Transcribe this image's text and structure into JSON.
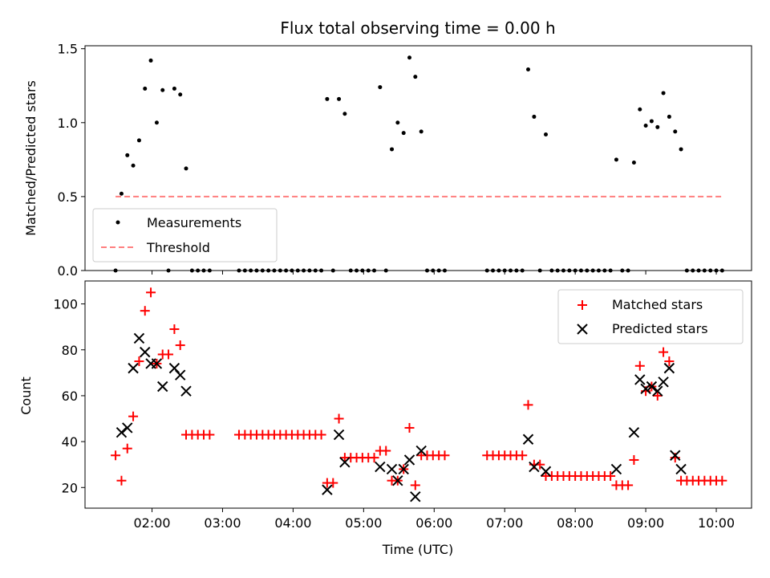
{
  "chart_data": [
    {
      "type": "scatter",
      "title": "Flux total observing time = 0.00 h",
      "xlabel": "",
      "ylabel": "Matched/Predicted stars",
      "xlim": [
        1.05,
        10.5
      ],
      "ylim": [
        0,
        1.52
      ],
      "yticks": [
        0,
        0.5,
        1.0,
        1.5
      ],
      "ytick_labels": [
        "0.0",
        "0.5",
        "1.0",
        "1.5"
      ],
      "legend_position": "lower-left",
      "series": [
        {
          "name": "Measurements",
          "marker": "dot",
          "color": "#000000",
          "x": [
            1.483,
            1.567,
            1.65,
            1.733,
            1.817,
            1.9,
            1.983,
            2.067,
            2.15,
            2.233,
            2.317,
            2.4,
            2.483,
            2.567,
            2.65,
            2.733,
            2.817,
            3.233,
            3.317,
            3.4,
            3.483,
            3.567,
            3.65,
            3.733,
            3.817,
            3.9,
            3.983,
            4.067,
            4.15,
            4.233,
            4.317,
            4.4,
            4.483,
            4.567,
            4.65,
            4.733,
            4.817,
            4.9,
            4.983,
            5.067,
            5.15,
            5.233,
            5.317,
            5.4,
            5.483,
            5.567,
            5.65,
            5.733,
            5.817,
            5.9,
            5.983,
            6.067,
            6.15,
            6.75,
            6.833,
            6.917,
            7.0,
            7.083,
            7.167,
            7.25,
            7.333,
            7.417,
            7.5,
            7.583,
            7.667,
            7.75,
            7.833,
            7.917,
            8.0,
            8.083,
            8.167,
            8.25,
            8.333,
            8.417,
            8.5,
            8.583,
            8.667,
            8.75,
            8.833,
            8.917,
            9.0,
            9.083,
            9.167,
            9.25,
            9.333,
            9.417,
            9.5,
            9.583,
            9.667,
            9.75,
            9.833,
            9.917,
            10.0,
            10.083
          ],
          "y": [
            0.0,
            0.52,
            0.78,
            0.71,
            0.88,
            1.23,
            1.42,
            1.0,
            1.22,
            0.0,
            1.23,
            1.19,
            0.69,
            0.0,
            0.0,
            0.0,
            0.0,
            0.0,
            0.0,
            0.0,
            0.0,
            0.0,
            0.0,
            0.0,
            0.0,
            0.0,
            0.0,
            0.0,
            0.0,
            0.0,
            0.0,
            0.0,
            1.16,
            0.0,
            1.16,
            1.06,
            0.0,
            0.0,
            0.0,
            0.0,
            0.0,
            1.24,
            0.0,
            0.82,
            1.0,
            0.93,
            1.44,
            1.31,
            0.94,
            0.0,
            0.0,
            0.0,
            0.0,
            0.0,
            0.0,
            0.0,
            0.0,
            0.0,
            0.0,
            0.0,
            1.36,
            1.04,
            0.0,
            0.92,
            0.0,
            0.0,
            0.0,
            0.0,
            0.0,
            0.0,
            0.0,
            0.0,
            0.0,
            0.0,
            0.0,
            0.75,
            0.0,
            0.0,
            0.73,
            1.09,
            0.98,
            1.01,
            0.97,
            1.2,
            1.04,
            0.94,
            0.82,
            0.0,
            0.0,
            0.0,
            0.0,
            0.0,
            0.0,
            0.0
          ]
        },
        {
          "name": "Threshold",
          "type": "line",
          "style": "dashed",
          "color": "#ff7f7f",
          "x": [
            1.483,
            10.083
          ],
          "y": [
            0.5,
            0.5
          ]
        }
      ]
    },
    {
      "type": "scatter",
      "title": "",
      "xlabel": "Time (UTC)",
      "ylabel": "Count",
      "xlim": [
        1.05,
        10.5
      ],
      "ylim": [
        11,
        110
      ],
      "yticks": [
        20,
        40,
        60,
        80,
        100
      ],
      "ytick_labels": [
        "20",
        "40",
        "60",
        "80",
        "100"
      ],
      "xticks": [
        2,
        3,
        4,
        5,
        6,
        7,
        8,
        9,
        10
      ],
      "xtick_labels": [
        "02:00",
        "03:00",
        "04:00",
        "05:00",
        "06:00",
        "07:00",
        "08:00",
        "09:00",
        "10:00"
      ],
      "legend_position": "upper-right",
      "series": [
        {
          "name": "Matched stars",
          "marker": "plus",
          "color": "#ff0000",
          "x": [
            1.483,
            1.567,
            1.65,
            1.733,
            1.817,
            1.9,
            1.983,
            2.067,
            2.15,
            2.233,
            2.317,
            2.4,
            2.483,
            2.567,
            2.65,
            2.733,
            2.817,
            3.233,
            3.317,
            3.4,
            3.483,
            3.567,
            3.65,
            3.733,
            3.817,
            3.9,
            3.983,
            4.067,
            4.15,
            4.233,
            4.317,
            4.4,
            4.483,
            4.567,
            4.65,
            4.733,
            4.817,
            4.9,
            4.983,
            5.067,
            5.15,
            5.233,
            5.317,
            5.4,
            5.483,
            5.567,
            5.65,
            5.733,
            5.817,
            5.9,
            5.983,
            6.067,
            6.15,
            6.75,
            6.833,
            6.917,
            7.0,
            7.083,
            7.167,
            7.25,
            7.333,
            7.417,
            7.5,
            7.583,
            7.667,
            7.75,
            7.833,
            7.917,
            8.0,
            8.083,
            8.167,
            8.25,
            8.333,
            8.417,
            8.5,
            8.583,
            8.667,
            8.75,
            8.833,
            8.917,
            9.0,
            9.083,
            9.167,
            9.25,
            9.333,
            9.417,
            9.5,
            9.583,
            9.667,
            9.75,
            9.833,
            9.917,
            10.0,
            10.083
          ],
          "y": [
            34,
            23,
            37,
            51,
            75,
            97,
            105,
            74,
            78,
            78,
            89,
            82,
            43,
            43,
            43,
            43,
            43,
            43,
            43,
            43,
            43,
            43,
            43,
            43,
            43,
            43,
            43,
            43,
            43,
            43,
            43,
            43,
            22,
            22,
            50,
            33,
            33,
            33,
            33,
            33,
            33,
            36,
            36,
            23,
            23,
            28,
            46,
            21,
            34,
            34,
            34,
            34,
            34,
            34,
            34,
            34,
            34,
            34,
            34,
            34,
            56,
            30,
            30,
            25,
            25,
            25,
            25,
            25,
            25,
            25,
            25,
            25,
            25,
            25,
            25,
            21,
            21,
            21,
            32,
            73,
            62,
            64,
            60,
            79,
            75,
            33,
            23,
            23,
            23,
            23,
            23,
            23,
            23,
            23
          ]
        },
        {
          "name": "Predicted stars",
          "marker": "x",
          "color": "#000000",
          "x": [
            1.567,
            1.65,
            1.733,
            1.817,
            1.9,
            1.983,
            2.067,
            2.15,
            2.317,
            2.4,
            2.483,
            4.483,
            4.65,
            4.733,
            5.233,
            5.4,
            5.483,
            5.567,
            5.65,
            5.733,
            5.817,
            7.333,
            7.417,
            7.583,
            8.583,
            8.833,
            8.917,
            9.0,
            9.083,
            9.167,
            9.25,
            9.333,
            9.417,
            9.5
          ],
          "y": [
            44,
            46,
            72,
            85,
            79,
            74,
            74,
            64,
            72,
            69,
            62,
            19,
            43,
            31,
            29,
            28,
            23,
            28,
            32,
            16,
            36,
            41,
            29,
            27,
            28,
            44,
            67,
            63,
            64,
            62,
            66,
            72,
            34,
            28
          ]
        }
      ]
    }
  ]
}
